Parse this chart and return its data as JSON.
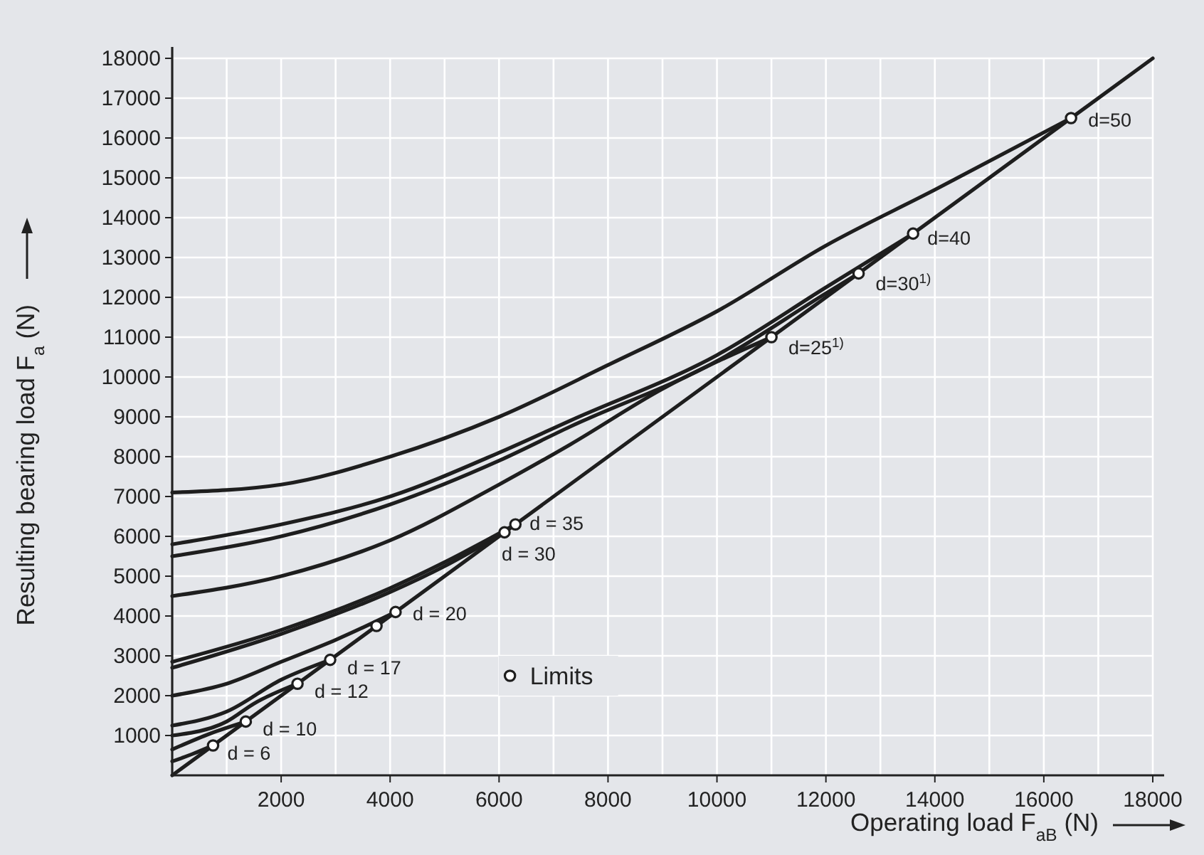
{
  "chart_data": {
    "type": "line",
    "xlabel": "Operating load F$_{aB}$ (N)",
    "ylabel": "Resulting bearing load F$_{a}$ (N)",
    "xlim": [
      0,
      18000
    ],
    "ylim": [
      0,
      18000
    ],
    "xticks": [
      {
        "value": 1000,
        "label": null
      },
      2000,
      {
        "value": 3000,
        "label": null
      },
      4000,
      {
        "value": 5000,
        "label": null
      },
      6000,
      {
        "value": 7000,
        "label": null
      },
      8000,
      {
        "value": 9000,
        "label": null
      },
      10000,
      {
        "value": 11000,
        "label": null
      },
      12000,
      {
        "value": 13000,
        "label": null
      },
      14000,
      {
        "value": 15000,
        "label": null
      },
      16000,
      {
        "value": 17000,
        "label": null
      },
      18000
    ],
    "yticks": [
      1000,
      2000,
      3000,
      4000,
      5000,
      6000,
      7000,
      8000,
      9000,
      10000,
      11000,
      12000,
      13000,
      14000,
      15000,
      16000,
      17000,
      18000
    ],
    "grid": true,
    "legend": "bottom",
    "line_style": "solid",
    "series": [
      {
        "color": "#1e1e1e",
        "x": [
          0,
          18000
        ],
        "values": [
          0,
          18000
        ]
      },
      {
        "color": "#1e1e1e",
        "x": [
          0,
          400,
          750
        ],
        "values": [
          350,
          550,
          750
        ]
      },
      {
        "color": "#1e1e1e",
        "x": [
          0,
          700,
          1350
        ],
        "values": [
          650,
          1050,
          1350
        ]
      },
      {
        "color": "#1e1e1e",
        "x": [
          0,
          1000,
          1500,
          2300
        ],
        "values": [
          1000,
          1350,
          1800,
          2300
        ]
      },
      {
        "color": "#1e1e1e",
        "x": [
          0,
          1000,
          2000,
          2900
        ],
        "values": [
          1250,
          1600,
          2400,
          2900
        ]
      },
      {
        "color": "#1e1e1e",
        "x": [
          0,
          1000,
          2000,
          3000,
          4100
        ],
        "values": [
          2000,
          2300,
          2850,
          3400,
          4100
        ]
      },
      {
        "color": "#1e1e1e",
        "x": [
          0,
          2000,
          4000,
          5000,
          6100
        ],
        "values": [
          2700,
          3550,
          4600,
          5250,
          6100
        ]
      },
      {
        "color": "#1e1e1e",
        "x": [
          0,
          2000,
          4000,
          5000,
          6300
        ],
        "values": [
          2850,
          3650,
          4700,
          5350,
          6300
        ]
      },
      {
        "color": "#1e1e1e",
        "x": [
          0,
          2000,
          4000,
          6000,
          7300,
          9000,
          11000
        ],
        "values": [
          4500,
          5000,
          5900,
          7300,
          8300,
          9700,
          11000
        ]
      },
      {
        "color": "#1e1e1e",
        "x": [
          0,
          2000,
          4000,
          6000,
          7300,
          10000,
          12000,
          12600
        ],
        "values": [
          5500,
          6000,
          6800,
          7900,
          8750,
          10400,
          12100,
          12600
        ]
      },
      {
        "color": "#1e1e1e",
        "x": [
          0,
          2000,
          4000,
          6000,
          7300,
          10000,
          12000,
          13600
        ],
        "values": [
          5800,
          6300,
          7000,
          8100,
          8900,
          10550,
          12250,
          13600
        ]
      },
      {
        "color": "#1e1e1e",
        "x": [
          0,
          2000,
          4000,
          6000,
          8000,
          10000,
          12000,
          14000,
          16500
        ],
        "values": [
          7100,
          7300,
          8000,
          9000,
          10300,
          11650,
          13300,
          14700,
          16500
        ]
      },
      {
        "type": "scatter",
        "name": "Limits",
        "marker": "circle",
        "color": "#1e1e1e",
        "x": [
          750,
          1350,
          2300,
          2900,
          3750,
          4100,
          6100,
          6300,
          11000,
          12600,
          13600,
          16500
        ],
        "values": [
          750,
          1350,
          2300,
          2900,
          3750,
          4100,
          6100,
          6300,
          11000,
          12600,
          13600,
          16500
        ]
      }
    ],
    "annotations": [
      {
        "text": "d = 6",
        "x": 750,
        "y": 750
      },
      {
        "text": "d = 10",
        "x": 1350,
        "y": 1350
      },
      {
        "text": "d = 12",
        "x": 2300,
        "y": 2300
      },
      {
        "text": "d = 17",
        "x": 2900,
        "y": 2900
      },
      {
        "text": "d = 20",
        "x": 4100,
        "y": 4100
      },
      {
        "text": "d = 30",
        "x": 6100,
        "y": 6100
      },
      {
        "text": "d = 35",
        "x": 6300,
        "y": 6300
      },
      {
        "text": "d=25$^{1)}$",
        "x": 11000,
        "y": 11000
      },
      {
        "text": "d=30$^{1)}$",
        "x": 12600,
        "y": 12600
      },
      {
        "text": "d=40",
        "x": 13600,
        "y": 13600
      },
      {
        "text": "d=50",
        "x": 16500,
        "y": 16500
      }
    ]
  }
}
